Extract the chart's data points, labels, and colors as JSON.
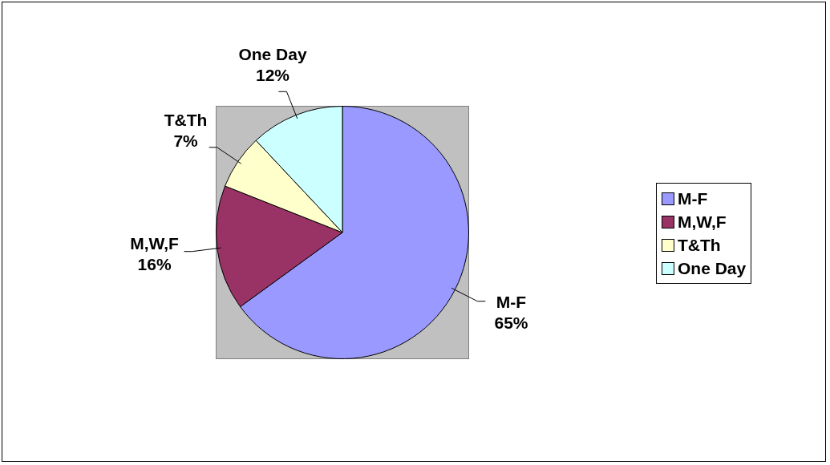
{
  "chart_data": {
    "type": "pie",
    "categories": [
      "M-F",
      "M,W,F",
      "T&Th",
      "One Day"
    ],
    "values": [
      65,
      16,
      7,
      12
    ],
    "colors": [
      "#9999ff",
      "#993366",
      "#ffffcc",
      "#ccffff"
    ],
    "value_labels": [
      "65%",
      "16%",
      "7%",
      "12%"
    ],
    "legend": "right"
  }
}
